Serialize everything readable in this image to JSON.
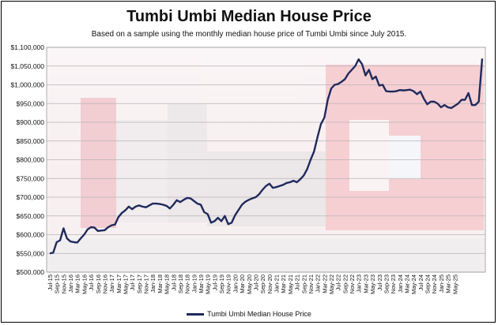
{
  "chart_data": {
    "type": "line",
    "title": "Tumbi Umbi Median House Price",
    "subtitle": "Based on a sample using the monthly median house price of Tumbi Umbi since July 2015.",
    "xlabel": "",
    "ylabel": "",
    "ylim": [
      500000,
      1100000
    ],
    "y_ticks": [
      "$500,000",
      "$550,000",
      "$600,000",
      "$650,000",
      "$700,000",
      "$750,000",
      "$800,000",
      "$850,000",
      "$900,000",
      "$950,000",
      "$1,000,000",
      "$1,050,000",
      "$1,100,000"
    ],
    "x_ticks": [
      "Jul-15",
      "Sep-15",
      "Nov-15",
      "Jan-16",
      "Mar-16",
      "May-16",
      "Jul-16",
      "Sep-16",
      "Nov-16",
      "Jan-17",
      "Mar-17",
      "May-17",
      "Jul-17",
      "Sep-17",
      "Nov-17",
      "Jan-18",
      "Mar-18",
      "May-18",
      "Jul-18",
      "Sep-18",
      "Nov-18",
      "Jan-19",
      "Mar-19",
      "May-19",
      "Jul-19",
      "Sep-19",
      "Nov-19",
      "Jan-20",
      "Mar-20",
      "May-20",
      "Jul-20",
      "Sep-20",
      "Nov-20",
      "Jan-21",
      "Mar-21",
      "May-21",
      "Jul-21",
      "Sep-21",
      "Nov-21",
      "Jan-22",
      "Mar-22",
      "May-22",
      "Jul-22",
      "Sep-22",
      "Nov-22",
      "Jan-23",
      "Mar-23",
      "May-23",
      "Jul-23",
      "Sep-23",
      "Nov-23",
      "Jan-24",
      "Mar-24",
      "May-24",
      "Jul-24",
      "Sep-24",
      "Nov-24",
      "Jan-25",
      "Mar-25",
      "May-25"
    ],
    "grid": true,
    "legend": "bottom",
    "series": [
      {
        "name": "Tumbi Umbi Median House Price",
        "color": "#1f2a5c",
        "x_start": "Jul-15",
        "x_end": "May-25",
        "values": [
          550000,
          552000,
          580000,
          585000,
          617000,
          590000,
          582000,
          580000,
          579000,
          590000,
          600000,
          614000,
          620000,
          619000,
          610000,
          611000,
          612000,
          620000,
          625000,
          627000,
          647000,
          658000,
          665000,
          675000,
          668000,
          675000,
          678000,
          675000,
          673000,
          678000,
          683000,
          683000,
          682000,
          680000,
          677000,
          670000,
          680000,
          692000,
          687000,
          693000,
          698000,
          697000,
          690000,
          683000,
          680000,
          660000,
          655000,
          632000,
          636000,
          645000,
          636000,
          650000,
          628000,
          632000,
          652000,
          666000,
          680000,
          688000,
          693000,
          697000,
          700000,
          708000,
          720000,
          730000,
          736000,
          725000,
          727000,
          730000,
          733000,
          738000,
          740000,
          744000,
          740000,
          748000,
          758000,
          775000,
          800000,
          822000,
          860000,
          895000,
          912000,
          960000,
          990000,
          1000000,
          1002000,
          1008000,
          1015000,
          1030000,
          1040000,
          1050000,
          1068000,
          1055000,
          1025000,
          1040000,
          1015000,
          1022000,
          998000,
          1000000,
          983000,
          982000,
          982000,
          983000,
          986000,
          985000,
          986000,
          987000,
          983000,
          975000,
          982000,
          963000,
          948000,
          955000,
          955000,
          950000,
          940000,
          946000,
          940000,
          938000,
          944000,
          950000,
          960000,
          960000,
          978000,
          946000,
          946000,
          955000,
          1070000
        ]
      }
    ]
  }
}
